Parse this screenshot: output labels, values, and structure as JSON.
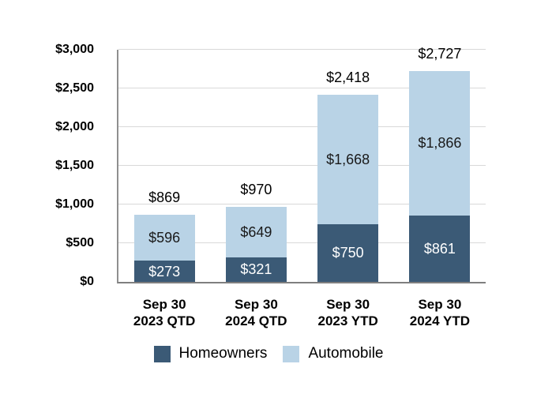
{
  "chart_data": {
    "type": "bar",
    "stacked": true,
    "title": "",
    "value_prefix": "$",
    "categories": [
      [
        "Sep 30",
        "2023 QTD"
      ],
      [
        "Sep 30",
        "2024 QTD"
      ],
      [
        "Sep 30",
        "2023 YTD"
      ],
      [
        "Sep 30",
        "2024 YTD"
      ]
    ],
    "series": [
      {
        "name": "Homeowners",
        "color": "#3b5a76",
        "label_color": "#ffffff",
        "values": [
          273,
          321,
          750,
          861
        ]
      },
      {
        "name": "Automobile",
        "color": "#b9d3e6",
        "label_color": "#1a1a1a",
        "values": [
          596,
          649,
          1668,
          1866
        ]
      }
    ],
    "totals": [
      869,
      970,
      2418,
      2727
    ],
    "ylim": [
      0,
      3000
    ],
    "ytick_step": 500,
    "ytick_labels": [
      "$0",
      "$500",
      "$1,000",
      "$1,500",
      "$2,000",
      "$2,500",
      "$3,000"
    ],
    "grid": true,
    "legend_position": "bottom",
    "colors": {
      "gridline": "#d9d9d9",
      "axis_left": "#8f8f8f",
      "axis_bottom": "#7f7f7f",
      "total_label": "#000000",
      "background": "#ffffff"
    }
  }
}
